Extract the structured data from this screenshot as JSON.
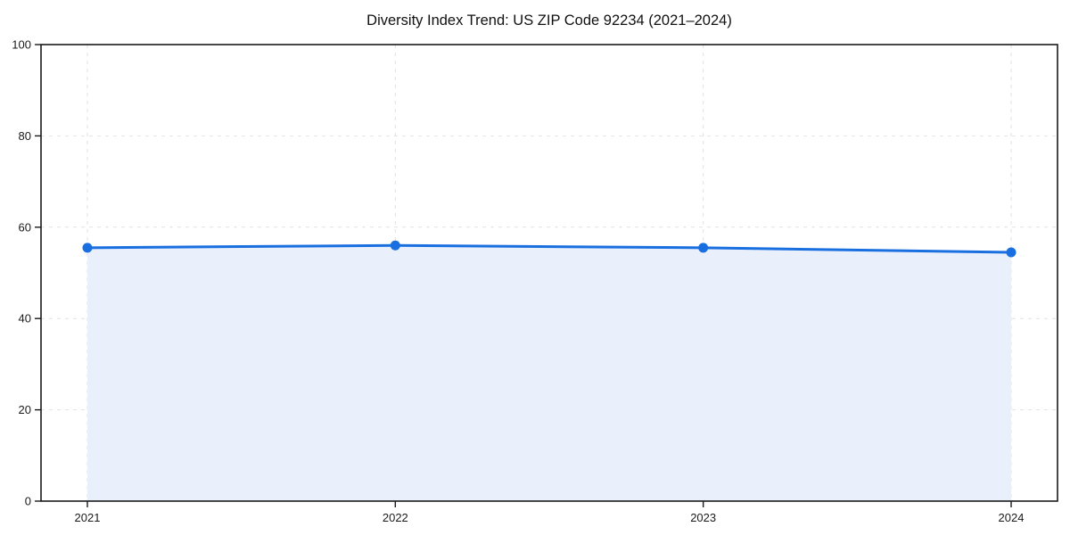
{
  "title": "Diversity Index Trend: US ZIP Code 92234 (2021–2024)",
  "colors": {
    "line": "#1a6fe0",
    "marker": "#1a6fe0",
    "area_fill": "#e9f0fc",
    "gridline": "#e2e2e2",
    "spine": "#1a1a1a",
    "text": "#1a1a1a",
    "background": "#ffffff"
  },
  "chart_data": {
    "type": "area",
    "title": "Diversity Index Trend: US ZIP Code 92234 (2021–2024)",
    "x": [
      "2021",
      "2022",
      "2023",
      "2024"
    ],
    "series": [
      {
        "name": "Diversity Index",
        "values": [
          55.5,
          56.0,
          55.5,
          54.5
        ]
      }
    ],
    "xlabel": "",
    "ylabel": "",
    "ylim": [
      0,
      100
    ],
    "yticks": [
      0,
      20,
      40,
      60,
      80,
      100
    ],
    "xticks": [
      "2021",
      "2022",
      "2023",
      "2024"
    ],
    "grid": true,
    "grid_style": "dashed",
    "legend": false,
    "marker": "circle",
    "frame": "full-box"
  }
}
